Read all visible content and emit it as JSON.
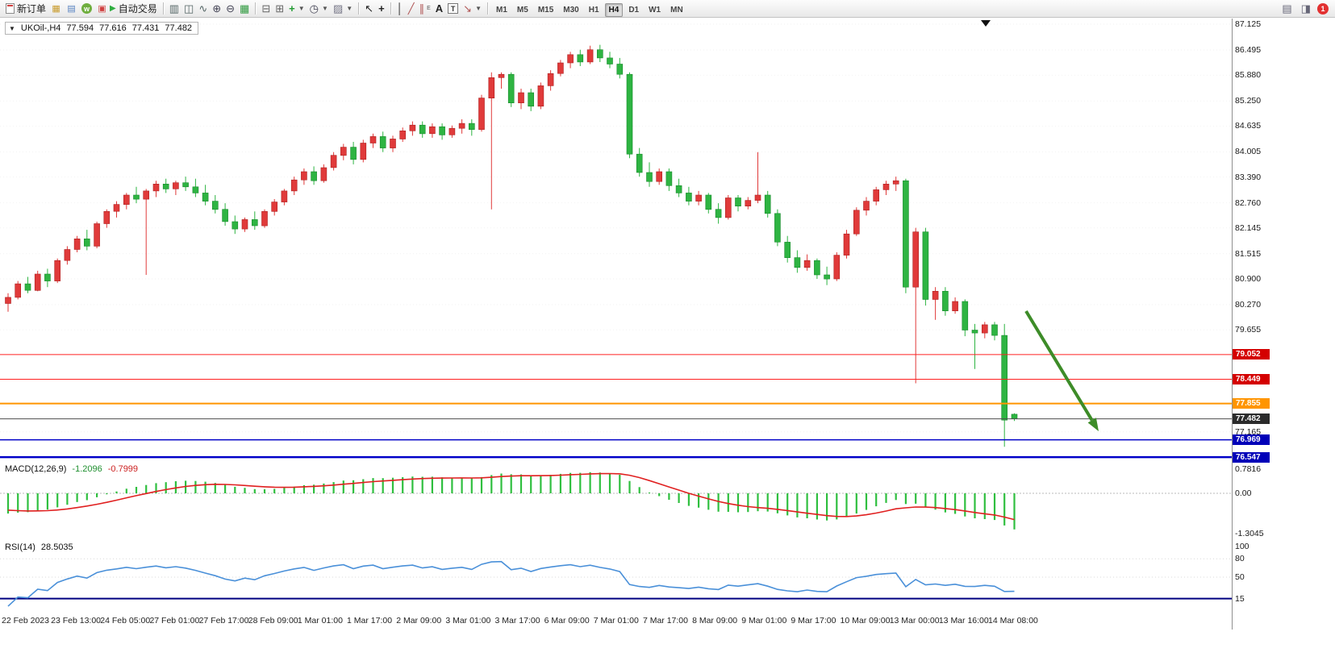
{
  "toolbar": {
    "new_order_label": "新订单",
    "autotrade_label": "自动交易",
    "timeframes": [
      "M1",
      "M5",
      "M15",
      "M30",
      "H1",
      "H4",
      "D1",
      "W1",
      "MN"
    ],
    "active_timeframe": "H4",
    "notification_count": "1",
    "icons": [
      "new-order",
      "market-watch",
      "data-window",
      "navigator",
      "autotrade",
      "bar-chart",
      "candlestick-chart",
      "line-chart",
      "zoom-in",
      "zoom-out",
      "grid",
      "indicator-window",
      "object-list",
      "add-indicator",
      "periods",
      "templates",
      "cursor",
      "crosshair",
      "vertical-line",
      "trendline",
      "equidistant-channel",
      "text",
      "text-label",
      "arrows",
      "chart-windows",
      "alerts"
    ]
  },
  "chart_data": {
    "type": "candlestick",
    "symbol_label": "UKOil-,H4",
    "ohlc_header": {
      "open": "77.594",
      "high": "77.616",
      "low": "77.431",
      "close": "77.482"
    },
    "colors": {
      "up": "#e03a3a",
      "up_edge": "#ad1f1f",
      "down": "#2eb442",
      "down_edge": "#178a2b"
    },
    "price_axis": [
      "87.125",
      "86.495",
      "85.880",
      "85.250",
      "84.635",
      "84.005",
      "83.390",
      "82.760",
      "82.145",
      "81.515",
      "80.900",
      "80.270",
      "79.655",
      "77.165"
    ],
    "levels": [
      {
        "label": "79.052",
        "price": 79.052,
        "line": "#ff2020",
        "width": 1,
        "chip": "#d40000"
      },
      {
        "label": "78.449",
        "price": 78.449,
        "line": "#ff2020",
        "width": 1,
        "chip": "#d40000"
      },
      {
        "label": "77.855",
        "price": 77.855,
        "line": "#ff9500",
        "width": 2,
        "chip": "#ff9500"
      },
      {
        "label": "77.482",
        "price": 77.482,
        "line": "#4d4d4d",
        "width": 1,
        "chip": "#2b2b2b"
      },
      {
        "label": "76.969",
        "price": 76.969,
        "line": "#0000c8",
        "width": 1.5,
        "chip": "#0000b8"
      },
      {
        "label": "76.547",
        "price": 76.547,
        "line": "#0000c8",
        "width": 2.5,
        "chip": "#0000b8"
      }
    ],
    "time_labels": [
      "22 Feb 2023",
      "23 Feb 13:00",
      "24 Feb 05:00",
      "27 Feb 01:00",
      "27 Feb 17:00",
      "28 Feb 09:00",
      "1 Mar 01:00",
      "1 Mar 17:00",
      "2 Mar 09:00",
      "3 Mar 01:00",
      "3 Mar 17:00",
      "6 Mar 09:00",
      "7 Mar 01:00",
      "7 Mar 17:00",
      "8 Mar 09:00",
      "9 Mar 01:00",
      "9 Mar 17:00",
      "10 Mar 09:00",
      "13 Mar 00:00",
      "13 Mar 16:00",
      "14 Mar 08:00"
    ],
    "candles": [
      [
        80.3,
        80.55,
        80.1,
        80.45
      ],
      [
        80.45,
        80.85,
        80.4,
        80.78
      ],
      [
        80.78,
        80.95,
        80.55,
        80.62
      ],
      [
        80.62,
        81.1,
        80.6,
        81.02
      ],
      [
        81.02,
        81.15,
        80.7,
        80.85
      ],
      [
        80.85,
        81.4,
        80.8,
        81.35
      ],
      [
        81.35,
        81.7,
        81.25,
        81.62
      ],
      [
        81.62,
        81.95,
        81.55,
        81.88
      ],
      [
        81.88,
        82.1,
        81.6,
        81.7
      ],
      [
        81.7,
        82.3,
        81.65,
        82.25
      ],
      [
        82.25,
        82.6,
        82.15,
        82.55
      ],
      [
        82.55,
        82.8,
        82.4,
        82.72
      ],
      [
        82.72,
        83.0,
        82.6,
        82.95
      ],
      [
        82.95,
        83.15,
        82.75,
        82.85
      ],
      [
        82.85,
        83.1,
        81.0,
        83.05
      ],
      [
        83.05,
        83.3,
        82.9,
        83.22
      ],
      [
        83.22,
        83.35,
        83.0,
        83.1
      ],
      [
        83.1,
        83.3,
        82.95,
        83.25
      ],
      [
        83.25,
        83.4,
        83.05,
        83.15
      ],
      [
        83.15,
        83.35,
        82.9,
        83.0
      ],
      [
        83.0,
        83.2,
        82.7,
        82.8
      ],
      [
        82.8,
        82.95,
        82.5,
        82.6
      ],
      [
        82.6,
        82.75,
        82.2,
        82.3
      ],
      [
        82.3,
        82.45,
        82.0,
        82.12
      ],
      [
        82.12,
        82.4,
        82.05,
        82.35
      ],
      [
        82.35,
        82.55,
        82.1,
        82.2
      ],
      [
        82.2,
        82.6,
        82.15,
        82.55
      ],
      [
        82.55,
        82.85,
        82.45,
        82.78
      ],
      [
        82.78,
        83.1,
        82.7,
        83.05
      ],
      [
        83.05,
        83.4,
        82.95,
        83.32
      ],
      [
        83.32,
        83.6,
        83.2,
        83.52
      ],
      [
        83.52,
        83.65,
        83.2,
        83.3
      ],
      [
        83.3,
        83.7,
        83.25,
        83.62
      ],
      [
        83.62,
        84.0,
        83.55,
        83.92
      ],
      [
        83.92,
        84.2,
        83.8,
        84.12
      ],
      [
        84.12,
        84.25,
        83.7,
        83.82
      ],
      [
        83.82,
        84.3,
        83.75,
        84.22
      ],
      [
        84.22,
        84.45,
        84.1,
        84.38
      ],
      [
        84.38,
        84.5,
        84.0,
        84.1
      ],
      [
        84.1,
        84.4,
        84.0,
        84.32
      ],
      [
        84.32,
        84.6,
        84.25,
        84.52
      ],
      [
        84.52,
        84.75,
        84.4,
        84.66
      ],
      [
        84.66,
        84.75,
        84.35,
        84.45
      ],
      [
        84.45,
        84.7,
        84.35,
        84.62
      ],
      [
        84.62,
        84.7,
        84.3,
        84.42
      ],
      [
        84.42,
        84.65,
        84.35,
        84.58
      ],
      [
        84.58,
        84.8,
        84.45,
        84.7
      ],
      [
        84.7,
        84.8,
        84.4,
        84.55
      ],
      [
        84.55,
        85.4,
        84.5,
        85.32
      ],
      [
        85.32,
        85.95,
        82.6,
        85.82
      ],
      [
        85.82,
        85.95,
        85.55,
        85.9
      ],
      [
        85.9,
        85.95,
        85.1,
        85.2
      ],
      [
        85.2,
        85.55,
        85.05,
        85.45
      ],
      [
        85.45,
        85.55,
        85.0,
        85.12
      ],
      [
        85.12,
        85.7,
        85.05,
        85.62
      ],
      [
        85.62,
        86.0,
        85.5,
        85.92
      ],
      [
        85.92,
        86.25,
        85.85,
        86.18
      ],
      [
        86.18,
        86.45,
        86.05,
        86.38
      ],
      [
        86.38,
        86.5,
        86.1,
        86.2
      ],
      [
        86.2,
        86.6,
        86.15,
        86.5
      ],
      [
        86.5,
        86.62,
        86.2,
        86.3
      ],
      [
        86.3,
        86.45,
        86.05,
        86.15
      ],
      [
        86.15,
        86.3,
        85.8,
        85.9
      ],
      [
        85.9,
        85.95,
        83.85,
        83.95
      ],
      [
        83.95,
        84.1,
        83.4,
        83.5
      ],
      [
        83.5,
        83.75,
        83.15,
        83.28
      ],
      [
        83.28,
        83.6,
        83.2,
        83.52
      ],
      [
        83.52,
        83.6,
        83.05,
        83.18
      ],
      [
        83.18,
        83.35,
        82.9,
        83.0
      ],
      [
        83.0,
        83.15,
        82.7,
        82.8
      ],
      [
        82.8,
        83.05,
        82.7,
        82.95
      ],
      [
        82.95,
        83.0,
        82.5,
        82.6
      ],
      [
        82.6,
        82.75,
        82.25,
        82.4
      ],
      [
        82.4,
        82.95,
        82.35,
        82.88
      ],
      [
        82.88,
        82.95,
        82.55,
        82.68
      ],
      [
        82.68,
        82.9,
        82.6,
        82.82
      ],
      [
        82.82,
        84.0,
        82.75,
        82.95
      ],
      [
        82.95,
        83.05,
        82.4,
        82.5
      ],
      [
        82.5,
        82.6,
        81.7,
        81.8
      ],
      [
        81.8,
        81.95,
        81.3,
        81.42
      ],
      [
        81.42,
        81.6,
        81.05,
        81.18
      ],
      [
        81.18,
        81.5,
        81.1,
        81.35
      ],
      [
        81.35,
        81.4,
        80.9,
        81.0
      ],
      [
        81.0,
        81.2,
        80.75,
        80.9
      ],
      [
        80.9,
        81.55,
        80.85,
        81.48
      ],
      [
        81.48,
        82.1,
        81.4,
        82.0
      ],
      [
        82.0,
        82.65,
        81.95,
        82.58
      ],
      [
        82.58,
        82.9,
        82.45,
        82.8
      ],
      [
        82.8,
        83.15,
        82.7,
        83.08
      ],
      [
        83.08,
        83.3,
        82.95,
        83.22
      ],
      [
        83.22,
        83.4,
        83.05,
        83.3
      ],
      [
        83.3,
        83.35,
        80.55,
        80.7
      ],
      [
        80.7,
        82.15,
        78.35,
        82.05
      ],
      [
        82.05,
        82.15,
        80.25,
        80.4
      ],
      [
        80.4,
        80.7,
        79.9,
        80.6
      ],
      [
        80.6,
        80.7,
        80.0,
        80.12
      ],
      [
        80.12,
        80.45,
        80.05,
        80.35
      ],
      [
        80.35,
        80.4,
        79.5,
        79.65
      ],
      [
        79.65,
        79.8,
        78.7,
        79.58
      ],
      [
        79.58,
        79.85,
        79.45,
        79.78
      ],
      [
        79.78,
        79.85,
        79.4,
        79.52
      ],
      [
        79.52,
        79.8,
        76.8,
        77.45
      ],
      [
        77.594,
        77.616,
        77.431,
        77.482
      ]
    ],
    "annotation_arrow": {
      "from": [
        1272,
        363
      ],
      "to": [
        1362,
        512
      ],
      "color": "#3d8c28"
    },
    "macd": {
      "name": "MACD(12,26,9)",
      "value1": "-1.2096",
      "value2": "-0.7999",
      "axis": [
        "0.7816",
        "0.00",
        "-1.3045"
      ],
      "bar_color": "#2fbf3f",
      "signal_color": "#e02020"
    },
    "rsi": {
      "name": "RSI(14)",
      "value": "28.5035",
      "axis": [
        "100",
        "80",
        "50",
        "15"
      ],
      "line_color": "#4a90d9",
      "level_line_color": "#000080"
    }
  }
}
